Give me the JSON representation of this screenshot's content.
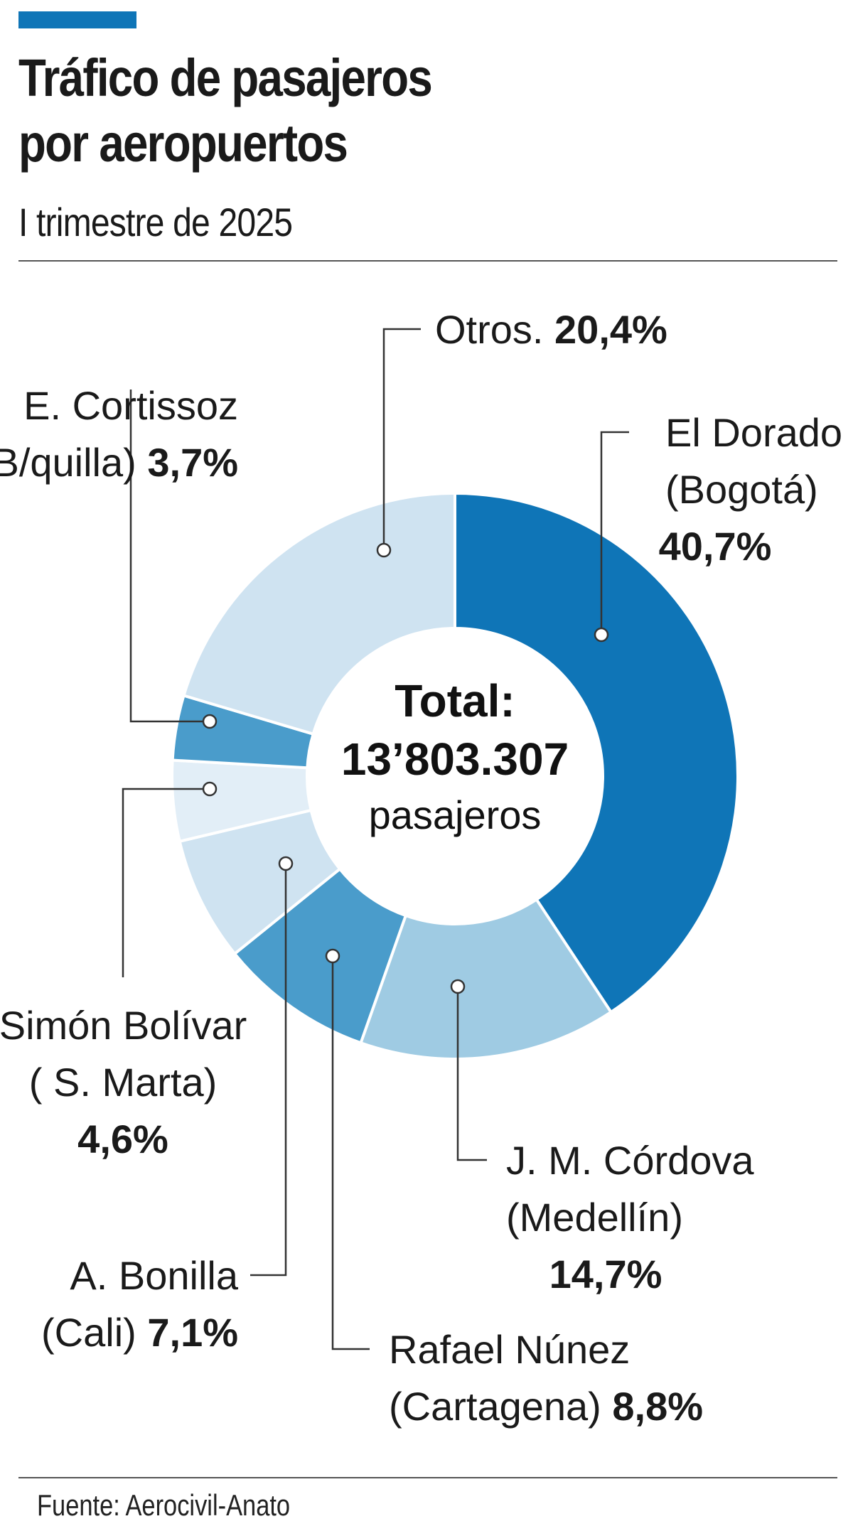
{
  "header": {
    "title_line1": "Tráfico de pasajeros",
    "title_line2": "por aeropuertos",
    "subtitle": "I trimestre de 2025"
  },
  "footer": {
    "source": "Fuente: Aerocivil-Anato"
  },
  "colors": {
    "accent": "#0f75b7",
    "dark_blue": "#0f75b7",
    "mid_blue": "#4a9ccb",
    "light_blue": "#9fcbe3",
    "pale_blue": "#cfe3f1",
    "palest_blue": "#e2eef7"
  },
  "chart_data": {
    "type": "pie",
    "subtype": "donut",
    "center": {
      "line1": "Total:",
      "line2": "13’803.307",
      "line3": "pasajeros"
    },
    "slices": [
      {
        "name_lines": [
          "El Dorado",
          "(Bogotá)"
        ],
        "value_label": "40,7%",
        "value": 40.7,
        "color": "#0f75b7"
      },
      {
        "name_lines": [
          "J. M. Córdova",
          "(Medellín)"
        ],
        "value_label": "14,7%",
        "value": 14.7,
        "color": "#9fcbe3"
      },
      {
        "name_lines": [
          "Rafael Núnez",
          "(Cartagena)"
        ],
        "value_label": "8,8%",
        "value": 8.8,
        "color": "#4a9ccb"
      },
      {
        "name_lines": [
          "A. Bonilla",
          "(Cali)"
        ],
        "value_label": "7,1%",
        "value": 7.1,
        "color": "#cfe3f1"
      },
      {
        "name_lines": [
          "Simón Bolívar",
          "( S. Marta)"
        ],
        "value_label": "4,6%",
        "value": 4.6,
        "color": "#e2eef7"
      },
      {
        "name_lines": [
          "E. Cortissoz",
          "(B/quilla)"
        ],
        "value_label": "3,7%",
        "value": 3.7,
        "color": "#4a9ccb"
      },
      {
        "name_lines": [
          "Otros."
        ],
        "value_label": "20,4%",
        "value": 20.4,
        "color": "#cfe3f1"
      }
    ]
  }
}
